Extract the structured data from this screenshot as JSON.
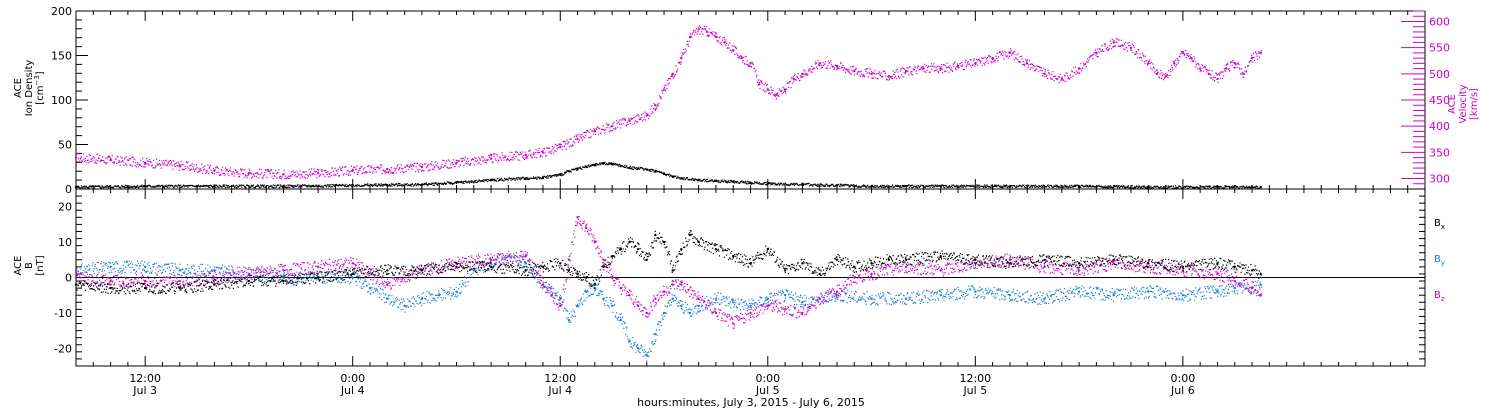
{
  "chart_data": [
    {
      "type": "scatter",
      "ylabel_lines": [
        "ACE",
        "Ion Density",
        "[cm"
      ],
      "ylabel_superscript": "−3",
      "ylabel_close": "]",
      "ylim": [
        0,
        200
      ],
      "yticks": [
        0,
        50,
        100,
        150,
        200
      ],
      "series": [
        {
          "color": "#000000",
          "x": [
            -16,
            -12,
            -8,
            -4,
            0,
            4,
            6,
            8,
            10,
            11,
            12,
            12.5,
            13,
            13.5,
            14,
            14.5,
            15,
            15.5,
            16,
            16.5,
            17,
            17.5,
            18,
            18.5,
            19,
            20,
            21,
            22,
            23,
            24,
            26,
            28,
            30,
            34,
            38,
            42,
            46,
            50,
            52.5
          ],
          "y": [
            2,
            3,
            3,
            3,
            4,
            5,
            7,
            10,
            12,
            13,
            16,
            20,
            23,
            25,
            27,
            29,
            28,
            26,
            24,
            23,
            22,
            20,
            17,
            14,
            12,
            10,
            9,
            8,
            7,
            6,
            5,
            4,
            3,
            3,
            3,
            3,
            2,
            2,
            2
          ]
        },
        {
          "color": "#cc00cc",
          "axis": "right",
          "x": [
            -16,
            -14,
            -12,
            -10,
            -8,
            -6,
            -4,
            -2,
            0,
            2,
            4,
            6,
            8,
            10,
            11,
            12,
            13,
            14,
            15,
            16,
            17,
            17.5,
            18,
            18.5,
            19,
            19.5,
            20,
            20.5,
            21,
            21.5,
            22,
            22.5,
            23,
            23.5,
            24,
            24.5,
            25,
            25.5,
            26,
            27,
            28,
            29,
            30,
            31,
            32,
            33,
            34,
            35,
            36,
            37,
            38,
            39,
            40,
            41,
            42,
            43,
            44,
            45,
            46,
            46.5,
            47,
            47.5,
            48,
            48.5,
            49,
            49.5,
            50,
            50.5,
            51,
            51.5,
            52,
            52.5
          ],
          "y": [
            340,
            335,
            330,
            325,
            315,
            310,
            308,
            310,
            315,
            318,
            322,
            330,
            338,
            345,
            350,
            360,
            375,
            390,
            400,
            410,
            420,
            440,
            470,
            500,
            530,
            570,
            585,
            580,
            570,
            560,
            545,
            530,
            520,
            480,
            470,
            460,
            470,
            490,
            500,
            520,
            515,
            505,
            500,
            495,
            505,
            510,
            510,
            515,
            520,
            530,
            540,
            520,
            500,
            490,
            510,
            540,
            560,
            550,
            520,
            500,
            495,
            520,
            540,
            530,
            510,
            500,
            490,
            510,
            520,
            500,
            530,
            540
          ]
        }
      ],
      "y2label_lines": [
        "ACE",
        "Velocity",
        "[km/s]"
      ],
      "y2lim": [
        280,
        620
      ],
      "y2ticks": [
        300,
        350,
        400,
        450,
        500,
        550,
        600
      ],
      "y2_color": "#cc00cc"
    },
    {
      "type": "scatter",
      "ylabel_lines": [
        "ACE",
        "B",
        "[nT]"
      ],
      "ylim": [
        -25,
        25
      ],
      "yticks": [
        -20,
        -10,
        0,
        10,
        20
      ],
      "zero_line": true,
      "series": [
        {
          "name_main": "B",
          "name_sub": "x",
          "color": "#000000",
          "x": [
            -16,
            -14,
            -12,
            -10,
            -8,
            -6,
            -4,
            -2,
            0,
            2,
            4,
            6,
            8,
            10,
            11,
            12,
            12.5,
            13,
            13.5,
            14,
            14.5,
            15,
            15.5,
            16,
            16.5,
            17,
            17.5,
            18,
            18.5,
            19,
            19.5,
            20,
            21,
            22,
            23,
            24,
            25,
            26,
            27,
            28,
            29,
            30,
            31,
            32,
            34,
            36,
            38,
            40,
            42,
            44,
            46,
            48,
            50,
            51,
            52,
            52.5
          ],
          "y": [
            -2,
            -3,
            -3,
            -3,
            -2,
            -1,
            -1,
            0,
            1,
            2,
            2,
            3,
            3,
            2,
            3,
            4,
            2,
            1,
            0,
            -2,
            3,
            6,
            8,
            10,
            8,
            5,
            12,
            10,
            2,
            8,
            12,
            10,
            8,
            6,
            4,
            8,
            2,
            4,
            1,
            5,
            3,
            4,
            5,
            5,
            6,
            5,
            4,
            5,
            4,
            5,
            4,
            3,
            4,
            3,
            2,
            1
          ]
        },
        {
          "name_main": "B",
          "name_sub": "y",
          "color": "#1a7fd9",
          "x": [
            -16,
            -14,
            -12,
            -10,
            -8,
            -6,
            -4,
            -2,
            0,
            1,
            2,
            3,
            4,
            5,
            6,
            7,
            8,
            9,
            10,
            11,
            12,
            12.5,
            13,
            13.5,
            14,
            14.5,
            15,
            15.5,
            16,
            16.5,
            17,
            17.5,
            18,
            18.5,
            19,
            19.5,
            20,
            21,
            22,
            23,
            24,
            25,
            26,
            27,
            28,
            30,
            32,
            34,
            36,
            38,
            40,
            42,
            44,
            46,
            48,
            50,
            51,
            52,
            52.5
          ],
          "y": [
            2,
            3,
            3,
            2,
            2,
            1,
            0,
            0,
            0,
            -3,
            -6,
            -8,
            -6,
            -5,
            -4,
            2,
            4,
            6,
            4,
            -2,
            -6,
            -12,
            -8,
            -4,
            -3,
            -6,
            -8,
            -12,
            -18,
            -20,
            -22,
            -16,
            -10,
            -6,
            -8,
            -10,
            -8,
            -6,
            -7,
            -8,
            -6,
            -5,
            -7,
            -6,
            -5,
            -6,
            -6,
            -5,
            -4,
            -5,
            -6,
            -4,
            -5,
            -4,
            -5,
            -4,
            -3,
            -3,
            -2
          ]
        },
        {
          "name_main": "B",
          "name_sub": "z",
          "color": "#cc00cc",
          "x": [
            -16,
            -14,
            -12,
            -10,
            -8,
            -6,
            -4,
            -2,
            0,
            2,
            4,
            6,
            8,
            10,
            11,
            11.5,
            12,
            12.5,
            13,
            13.5,
            14,
            14.5,
            15,
            15.5,
            16,
            16.5,
            17,
            17.5,
            18,
            18.5,
            19,
            20,
            21,
            22,
            23,
            24,
            25,
            26,
            27,
            28,
            29,
            30,
            32,
            34,
            36,
            38,
            40,
            42,
            44,
            46,
            48,
            50,
            51,
            52,
            52.5
          ],
          "y": [
            0,
            -1,
            -1,
            -1,
            0,
            1,
            2,
            3,
            4,
            -2,
            2,
            4,
            5,
            6,
            -2,
            -5,
            -8,
            5,
            17,
            14,
            10,
            5,
            0,
            -3,
            -5,
            -8,
            -10,
            -6,
            -4,
            -2,
            -2,
            -6,
            -10,
            -13,
            -10,
            -8,
            -9,
            -10,
            -6,
            -4,
            0,
            1,
            3,
            2,
            4,
            5,
            3,
            2,
            4,
            3,
            2,
            1,
            -1,
            -3,
            -5
          ]
        }
      ]
    }
  ],
  "xaxis": {
    "range_hours": [
      -16,
      62
    ],
    "ticks": [
      {
        "t": "Jul 3 12:00",
        "time": "12:00",
        "date": "Jul 3"
      },
      {
        "t": "Jul 4 00:00",
        "time": "0:00",
        "date": "Jul 4"
      },
      {
        "t": "Jul 4 12:00",
        "time": "12:00",
        "date": "Jul 4"
      },
      {
        "t": "Jul 5 00:00",
        "time": "0:00",
        "date": "Jul 5"
      },
      {
        "t": "Jul 5 12:00",
        "time": "12:00",
        "date": "Jul 5"
      },
      {
        "t": "Jul 6 00:00",
        "time": "0:00",
        "date": "Jul 6"
      }
    ],
    "tick_hours": [
      -12,
      0,
      12,
      24,
      36,
      48
    ],
    "xlabel": "hours:minutes, July  3, 2015 - July  6, 2015"
  }
}
